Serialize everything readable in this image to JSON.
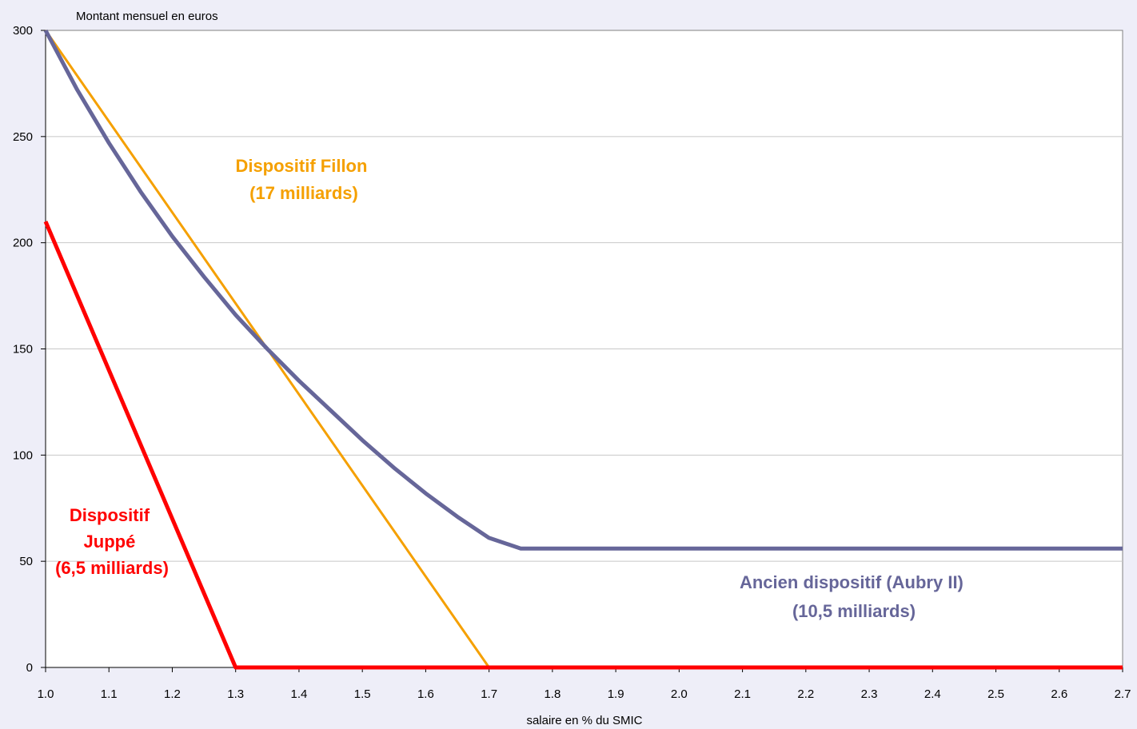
{
  "chart_data": {
    "type": "line",
    "title": "",
    "ylabel": "Montant mensuel en euros",
    "xlabel": "salaire en % du SMIC",
    "xlim": [
      1.0,
      2.7
    ],
    "ylim": [
      0,
      300
    ],
    "x_ticks": [
      "1.0",
      "1.1",
      "1.2",
      "1.3",
      "1.4",
      "1.5",
      "1.6",
      "1.7",
      "1.8",
      "1.9",
      "2.0",
      "2.1",
      "2.2",
      "2.3",
      "2.4",
      "2.5",
      "2.6",
      "2.7"
    ],
    "y_ticks": [
      "0",
      "50",
      "100",
      "150",
      "200",
      "250",
      "300"
    ],
    "grid": {
      "horizontal": true,
      "vertical": false
    },
    "legend": "none",
    "series": [
      {
        "key": "fillon",
        "color": "#F5A000",
        "x": [
          1.0,
          1.7,
          2.7
        ],
        "y": [
          300,
          0,
          0
        ]
      },
      {
        "key": "aubry",
        "color": "#666699",
        "x": [
          1.0,
          1.05,
          1.1,
          1.15,
          1.2,
          1.25,
          1.3,
          1.35,
          1.4,
          1.45,
          1.5,
          1.55,
          1.6,
          1.65,
          1.7,
          1.75,
          2.7
        ],
        "y": [
          300,
          272,
          247,
          224,
          203,
          184,
          166,
          150,
          135,
          121,
          107,
          94,
          82,
          71,
          61,
          56,
          56
        ]
      },
      {
        "key": "juppe",
        "color": "#FF0000",
        "x": [
          1.0,
          1.3,
          2.7
        ],
        "y": [
          210,
          0,
          0
        ]
      }
    ],
    "annotations": [
      {
        "key": "fillon",
        "color": "#F5A000",
        "lines": [
          "Dispositif Fillon",
          "(17 milliards)"
        ]
      },
      {
        "key": "juppe",
        "color": "#FF0000",
        "lines": [
          "Dispositif",
          "Juppé",
          "(6,5 milliards)"
        ]
      },
      {
        "key": "aubry",
        "color": "#666699",
        "lines": [
          "Ancien dispositif (Aubry II)",
          "(10,5 milliards)"
        ]
      }
    ]
  }
}
